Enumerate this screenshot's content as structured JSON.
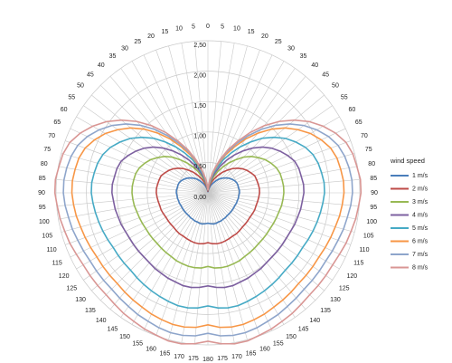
{
  "chart_data": {
    "type": "radar",
    "categories": [
      "0",
      "5",
      "10",
      "15",
      "20",
      "25",
      "30",
      "35",
      "40",
      "45",
      "50",
      "55",
      "60",
      "65",
      "70",
      "75",
      "80",
      "85",
      "90",
      "95",
      "100",
      "105",
      "110",
      "115",
      "120",
      "125",
      "130",
      "135",
      "140",
      "145",
      "150",
      "155",
      "160",
      "165",
      "170",
      "175",
      "180",
      "175",
      "170",
      "165",
      "160",
      "155",
      "150",
      "145",
      "140",
      "135",
      "130",
      "125",
      "120",
      "115",
      "110",
      "105",
      "100",
      "95",
      "90",
      "85",
      "80",
      "75",
      "70",
      "65",
      "60",
      "55",
      "50",
      "45",
      "40",
      "35",
      "30",
      "25",
      "20",
      "15",
      "10",
      "5"
    ],
    "ylim": [
      0,
      2.5
    ],
    "yticks": [
      {
        "value": 0,
        "label": "0,00"
      },
      {
        "value": 0.5,
        "label": "0,50"
      },
      {
        "value": 1,
        "label": "1,00"
      },
      {
        "value": 1.5,
        "label": "1,50"
      },
      {
        "value": 2,
        "label": "2,00"
      },
      {
        "value": 2.5,
        "label": "2,50"
      }
    ],
    "legend_title": "wind speed",
    "legend": "right",
    "series": [
      {
        "name": "1 m/s",
        "color": "#4a7ebb",
        "values": [
          0.01,
          0.03,
          0.05,
          0.08,
          0.12,
          0.16,
          0.2,
          0.25,
          0.3,
          0.34,
          0.38,
          0.42,
          0.45,
          0.48,
          0.5,
          0.51,
          0.51,
          0.52,
          0.52,
          0.51,
          0.51,
          0.5,
          0.5,
          0.49,
          0.49,
          0.49,
          0.49,
          0.49,
          0.49,
          0.5,
          0.5,
          0.51,
          0.51,
          0.52,
          0.52,
          0.51,
          0.5,
          0.51,
          0.52,
          0.52,
          0.51,
          0.51,
          0.5,
          0.5,
          0.49,
          0.49,
          0.49,
          0.49,
          0.49,
          0.49,
          0.5,
          0.5,
          0.51,
          0.51,
          0.52,
          0.52,
          0.51,
          0.51,
          0.5,
          0.48,
          0.45,
          0.42,
          0.38,
          0.34,
          0.3,
          0.25,
          0.2,
          0.16,
          0.12,
          0.08,
          0.05,
          0.03
        ]
      },
      {
        "name": "2 m/s",
        "color": "#be4b48",
        "values": [
          0.02,
          0.04,
          0.09,
          0.14,
          0.2,
          0.26,
          0.33,
          0.41,
          0.48,
          0.56,
          0.63,
          0.69,
          0.74,
          0.78,
          0.82,
          0.83,
          0.84,
          0.85,
          0.85,
          0.84,
          0.83,
          0.82,
          0.82,
          0.81,
          0.8,
          0.8,
          0.8,
          0.8,
          0.81,
          0.82,
          0.82,
          0.83,
          0.84,
          0.85,
          0.85,
          0.84,
          0.82,
          0.84,
          0.85,
          0.85,
          0.84,
          0.83,
          0.82,
          0.82,
          0.81,
          0.8,
          0.8,
          0.8,
          0.8,
          0.81,
          0.82,
          0.82,
          0.83,
          0.84,
          0.85,
          0.85,
          0.84,
          0.83,
          0.82,
          0.78,
          0.74,
          0.69,
          0.63,
          0.56,
          0.48,
          0.41,
          0.33,
          0.26,
          0.2,
          0.14,
          0.09,
          0.04
        ]
      },
      {
        "name": "3 m/s",
        "color": "#98b954",
        "values": [
          0.03,
          0.06,
          0.13,
          0.2,
          0.29,
          0.39,
          0.49,
          0.6,
          0.71,
          0.83,
          0.93,
          1.01,
          1.09,
          1.15,
          1.2,
          1.23,
          1.24,
          1.25,
          1.25,
          1.24,
          1.23,
          1.21,
          1.2,
          1.19,
          1.18,
          1.18,
          1.18,
          1.18,
          1.19,
          1.2,
          1.21,
          1.23,
          1.24,
          1.25,
          1.25,
          1.24,
          1.21,
          1.24,
          1.25,
          1.25,
          1.24,
          1.23,
          1.21,
          1.2,
          1.19,
          1.18,
          1.18,
          1.18,
          1.18,
          1.19,
          1.2,
          1.21,
          1.23,
          1.24,
          1.25,
          1.25,
          1.24,
          1.23,
          1.2,
          1.15,
          1.09,
          1.01,
          0.93,
          0.83,
          0.71,
          0.6,
          0.49,
          0.39,
          0.29,
          0.2,
          0.13,
          0.06
        ]
      },
      {
        "name": "4 m/s",
        "color": "#7d60a0",
        "values": [
          0.03,
          0.08,
          0.16,
          0.25,
          0.36,
          0.49,
          0.62,
          0.76,
          0.9,
          1.04,
          1.17,
          1.28,
          1.37,
          1.45,
          1.52,
          1.55,
          1.56,
          1.58,
          1.58,
          1.56,
          1.55,
          1.53,
          1.52,
          1.5,
          1.49,
          1.49,
          1.49,
          1.49,
          1.5,
          1.52,
          1.53,
          1.55,
          1.56,
          1.58,
          1.58,
          1.56,
          1.53,
          1.56,
          1.58,
          1.58,
          1.56,
          1.55,
          1.53,
          1.52,
          1.5,
          1.49,
          1.49,
          1.49,
          1.49,
          1.5,
          1.52,
          1.53,
          1.55,
          1.56,
          1.58,
          1.58,
          1.56,
          1.55,
          1.52,
          1.45,
          1.37,
          1.28,
          1.17,
          1.04,
          0.9,
          0.76,
          0.62,
          0.49,
          0.36,
          0.25,
          0.16,
          0.08
        ]
      },
      {
        "name": "5 m/s",
        "color": "#46aac5",
        "values": [
          0.04,
          0.1,
          0.19,
          0.31,
          0.44,
          0.6,
          0.75,
          0.92,
          1.09,
          1.27,
          1.42,
          1.56,
          1.67,
          1.77,
          1.84,
          1.88,
          1.9,
          1.92,
          1.92,
          1.9,
          1.88,
          1.86,
          1.84,
          1.82,
          1.8,
          1.8,
          1.8,
          1.8,
          1.82,
          1.84,
          1.86,
          1.88,
          1.9,
          1.92,
          1.92,
          1.9,
          1.86,
          1.9,
          1.92,
          1.92,
          1.9,
          1.88,
          1.86,
          1.84,
          1.82,
          1.8,
          1.8,
          1.8,
          1.8,
          1.82,
          1.84,
          1.86,
          1.88,
          1.9,
          1.92,
          1.92,
          1.9,
          1.88,
          1.84,
          1.77,
          1.67,
          1.56,
          1.42,
          1.27,
          1.09,
          0.92,
          0.75,
          0.6,
          0.44,
          0.31,
          0.19,
          0.1
        ]
      },
      {
        "name": "6 m/s",
        "color": "#f79646",
        "values": [
          0.04,
          0.11,
          0.22,
          0.36,
          0.52,
          0.69,
          0.87,
          1.08,
          1.28,
          1.48,
          1.66,
          1.81,
          1.95,
          2.06,
          2.15,
          2.2,
          2.22,
          2.24,
          2.24,
          2.22,
          2.2,
          2.17,
          2.15,
          2.13,
          2.11,
          2.11,
          2.11,
          2.11,
          2.13,
          2.15,
          2.17,
          2.2,
          2.22,
          2.24,
          2.24,
          2.22,
          2.17,
          2.22,
          2.24,
          2.24,
          2.22,
          2.2,
          2.17,
          2.15,
          2.13,
          2.11,
          2.11,
          2.11,
          2.11,
          2.13,
          2.15,
          2.17,
          2.2,
          2.22,
          2.24,
          2.24,
          2.22,
          2.2,
          2.15,
          2.06,
          1.95,
          1.81,
          1.66,
          1.48,
          1.28,
          1.08,
          0.87,
          0.69,
          0.52,
          0.36,
          0.22,
          0.11
        ]
      },
      {
        "name": "7 m/s",
        "color": "#8ea5cb",
        "values": [
          0.05,
          0.12,
          0.24,
          0.38,
          0.55,
          0.74,
          0.93,
          1.14,
          1.36,
          1.57,
          1.76,
          1.93,
          2.07,
          2.19,
          2.28,
          2.33,
          2.36,
          2.38,
          2.38,
          2.36,
          2.33,
          2.31,
          2.28,
          2.26,
          2.24,
          2.24,
          2.24,
          2.24,
          2.26,
          2.28,
          2.31,
          2.33,
          2.36,
          2.38,
          2.38,
          2.36,
          2.31,
          2.36,
          2.38,
          2.38,
          2.36,
          2.33,
          2.31,
          2.28,
          2.26,
          2.24,
          2.24,
          2.24,
          2.24,
          2.26,
          2.28,
          2.31,
          2.33,
          2.36,
          2.38,
          2.38,
          2.36,
          2.33,
          2.28,
          2.19,
          2.07,
          1.93,
          1.76,
          1.57,
          1.36,
          1.14,
          0.93,
          0.74,
          0.55,
          0.38,
          0.24,
          0.12
        ]
      },
      {
        "name": "8 m/s",
        "color": "#d99694",
        "values": [
          0.05,
          0.13,
          0.25,
          0.4,
          0.58,
          0.78,
          0.98,
          1.21,
          1.44,
          1.66,
          1.86,
          2.04,
          2.19,
          2.32,
          2.42,
          2.47,
          2.49,
          2.52,
          2.52,
          2.49,
          2.47,
          2.44,
          2.42,
          2.39,
          2.37,
          2.37,
          2.37,
          2.37,
          2.39,
          2.42,
          2.44,
          2.47,
          2.49,
          2.52,
          2.52,
          2.49,
          2.44,
          2.49,
          2.52,
          2.52,
          2.49,
          2.47,
          2.44,
          2.42,
          2.39,
          2.37,
          2.37,
          2.37,
          2.37,
          2.39,
          2.42,
          2.44,
          2.47,
          2.49,
          2.52,
          2.52,
          2.49,
          2.47,
          2.42,
          2.32,
          2.19,
          2.04,
          1.86,
          1.66,
          1.44,
          1.21,
          0.98,
          0.78,
          0.58,
          0.4,
          0.25,
          0.13
        ]
      }
    ]
  }
}
